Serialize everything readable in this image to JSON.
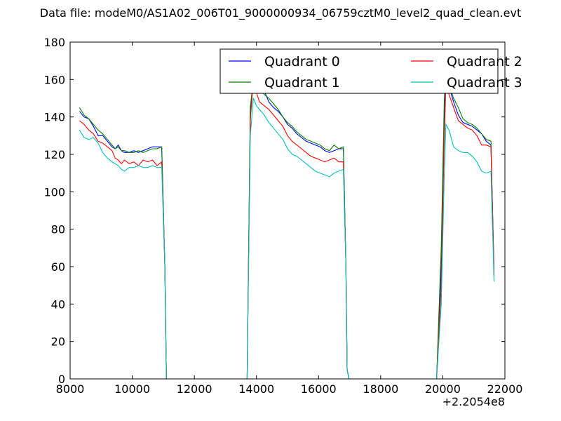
{
  "chart_data": {
    "type": "line",
    "title": "Data file: modeM0/AS1A02_006T01_9000000934_06759cztM0_level2_quad_clean.evt",
    "xlabel": "",
    "ylabel": "",
    "x_offset_label": "+2.2054e8",
    "xlim": [
      8000,
      22000
    ],
    "ylim": [
      0,
      180
    ],
    "xticks": [
      8000,
      10000,
      12000,
      14000,
      16000,
      18000,
      20000,
      22000
    ],
    "yticks": [
      0,
      20,
      40,
      60,
      80,
      100,
      120,
      140,
      160,
      180
    ],
    "grid": false,
    "legend_position": "upper-right",
    "series": [
      {
        "name": "Quadrant 0",
        "color": "#0000ff",
        "points": [
          [
            8300,
            143
          ],
          [
            8450,
            140
          ],
          [
            8600,
            139
          ],
          [
            8750,
            135
          ],
          [
            8900,
            130
          ],
          [
            9050,
            130
          ],
          [
            9200,
            127
          ],
          [
            9350,
            124
          ],
          [
            9450,
            123
          ],
          [
            9550,
            125
          ],
          [
            9650,
            122
          ],
          [
            9750,
            121
          ],
          [
            9900,
            121
          ],
          [
            10050,
            122
          ],
          [
            10200,
            121
          ],
          [
            10350,
            122
          ],
          [
            10500,
            123
          ],
          [
            10650,
            124
          ],
          [
            10800,
            124
          ],
          [
            10950,
            124
          ],
          [
            11050,
            60
          ],
          [
            11100,
            0
          ],
          [
            13700,
            0
          ],
          [
            13800,
            140
          ],
          [
            13900,
            163
          ],
          [
            14000,
            160
          ],
          [
            14100,
            157
          ],
          [
            14250,
            154
          ],
          [
            14400,
            148
          ],
          [
            14550,
            145
          ],
          [
            14700,
            143
          ],
          [
            14850,
            140
          ],
          [
            15000,
            136
          ],
          [
            15150,
            134
          ],
          [
            15300,
            131
          ],
          [
            15450,
            129
          ],
          [
            15600,
            127
          ],
          [
            15750,
            126
          ],
          [
            15900,
            125
          ],
          [
            16050,
            124
          ],
          [
            16200,
            122
          ],
          [
            16350,
            121
          ],
          [
            16500,
            122
          ],
          [
            16650,
            123
          ],
          [
            16800,
            123
          ],
          [
            16880,
            60
          ],
          [
            16920,
            5
          ],
          [
            16980,
            0
          ],
          [
            19800,
            0
          ],
          [
            19950,
            60
          ],
          [
            20050,
            140
          ],
          [
            20100,
            160
          ],
          [
            20200,
            156
          ],
          [
            20350,
            148
          ],
          [
            20500,
            141
          ],
          [
            20650,
            137
          ],
          [
            20800,
            136
          ],
          [
            20950,
            135
          ],
          [
            21100,
            133
          ],
          [
            21250,
            131
          ],
          [
            21400,
            127
          ],
          [
            21550,
            125
          ],
          [
            21650,
            58
          ]
        ]
      },
      {
        "name": "Quadrant 1",
        "color": "#008000",
        "points": [
          [
            8300,
            145
          ],
          [
            8450,
            141
          ],
          [
            8600,
            139
          ],
          [
            8750,
            136
          ],
          [
            8900,
            133
          ],
          [
            9050,
            131
          ],
          [
            9200,
            128
          ],
          [
            9350,
            125
          ],
          [
            9450,
            123
          ],
          [
            9550,
            124
          ],
          [
            9650,
            122
          ],
          [
            9750,
            122
          ],
          [
            9900,
            121
          ],
          [
            10050,
            121
          ],
          [
            10200,
            122
          ],
          [
            10350,
            121
          ],
          [
            10500,
            122
          ],
          [
            10650,
            123
          ],
          [
            10800,
            123
          ],
          [
            10950,
            124
          ],
          [
            11050,
            60
          ],
          [
            11100,
            0
          ],
          [
            13700,
            0
          ],
          [
            13800,
            145
          ],
          [
            13900,
            160
          ],
          [
            14000,
            166
          ],
          [
            14100,
            155
          ],
          [
            14250,
            152
          ],
          [
            14400,
            150
          ],
          [
            14550,
            147
          ],
          [
            14700,
            144
          ],
          [
            14850,
            140
          ],
          [
            15000,
            137
          ],
          [
            15150,
            135
          ],
          [
            15300,
            132
          ],
          [
            15450,
            130
          ],
          [
            15600,
            128
          ],
          [
            15750,
            127
          ],
          [
            15900,
            126
          ],
          [
            16050,
            125
          ],
          [
            16200,
            123
          ],
          [
            16350,
            122
          ],
          [
            16500,
            125
          ],
          [
            16650,
            123
          ],
          [
            16800,
            124
          ],
          [
            16880,
            60
          ],
          [
            16920,
            5
          ],
          [
            16980,
            0
          ],
          [
            19800,
            0
          ],
          [
            19950,
            70
          ],
          [
            20050,
            150
          ],
          [
            20100,
            162
          ],
          [
            20200,
            157
          ],
          [
            20350,
            150
          ],
          [
            20500,
            145
          ],
          [
            20650,
            139
          ],
          [
            20800,
            137
          ],
          [
            20950,
            136
          ],
          [
            21100,
            134
          ],
          [
            21250,
            131
          ],
          [
            21400,
            128
          ],
          [
            21550,
            127
          ],
          [
            21650,
            55
          ]
        ]
      },
      {
        "name": "Quadrant 2",
        "color": "#ff0000",
        "points": [
          [
            8300,
            138
          ],
          [
            8450,
            136
          ],
          [
            8600,
            133
          ],
          [
            8750,
            131
          ],
          [
            8900,
            127
          ],
          [
            9050,
            126
          ],
          [
            9200,
            124
          ],
          [
            9350,
            122
          ],
          [
            9450,
            118
          ],
          [
            9550,
            117
          ],
          [
            9650,
            115
          ],
          [
            9750,
            117
          ],
          [
            9900,
            115
          ],
          [
            10050,
            116
          ],
          [
            10200,
            114
          ],
          [
            10350,
            117
          ],
          [
            10500,
            116
          ],
          [
            10650,
            117
          ],
          [
            10800,
            114
          ],
          [
            10950,
            116
          ],
          [
            11050,
            60
          ],
          [
            11100,
            0
          ],
          [
            13700,
            0
          ],
          [
            13800,
            138
          ],
          [
            13900,
            160
          ],
          [
            14000,
            153
          ],
          [
            14100,
            148
          ],
          [
            14250,
            146
          ],
          [
            14400,
            144
          ],
          [
            14550,
            141
          ],
          [
            14700,
            138
          ],
          [
            14850,
            135
          ],
          [
            15000,
            130
          ],
          [
            15150,
            127
          ],
          [
            15300,
            125
          ],
          [
            15450,
            123
          ],
          [
            15600,
            121
          ],
          [
            15750,
            119
          ],
          [
            15900,
            118
          ],
          [
            16050,
            117
          ],
          [
            16200,
            116
          ],
          [
            16350,
            117
          ],
          [
            16500,
            118
          ],
          [
            16650,
            116
          ],
          [
            16800,
            116
          ],
          [
            16880,
            60
          ],
          [
            16920,
            5
          ],
          [
            16980,
            0
          ],
          [
            19800,
            0
          ],
          [
            19950,
            50
          ],
          [
            20050,
            130
          ],
          [
            20100,
            158
          ],
          [
            20200,
            152
          ],
          [
            20350,
            145
          ],
          [
            20500,
            138
          ],
          [
            20650,
            136
          ],
          [
            20800,
            134
          ],
          [
            20950,
            133
          ],
          [
            21100,
            130
          ],
          [
            21250,
            125
          ],
          [
            21400,
            125
          ],
          [
            21550,
            124
          ],
          [
            21650,
            55
          ]
        ]
      },
      {
        "name": "Quadrant 3",
        "color": "#00bfbf",
        "points": [
          [
            8300,
            133
          ],
          [
            8450,
            129
          ],
          [
            8600,
            128
          ],
          [
            8750,
            129
          ],
          [
            8900,
            126
          ],
          [
            9050,
            121
          ],
          [
            9200,
            118
          ],
          [
            9350,
            116
          ],
          [
            9450,
            115
          ],
          [
            9550,
            114
          ],
          [
            9650,
            112
          ],
          [
            9750,
            111
          ],
          [
            9900,
            113
          ],
          [
            10050,
            113
          ],
          [
            10200,
            114
          ],
          [
            10350,
            113
          ],
          [
            10500,
            113
          ],
          [
            10650,
            114
          ],
          [
            10800,
            113
          ],
          [
            10950,
            113
          ],
          [
            11050,
            60
          ],
          [
            11100,
            0
          ],
          [
            13700,
            0
          ],
          [
            13800,
            130
          ],
          [
            13900,
            150
          ],
          [
            14000,
            146
          ],
          [
            14100,
            144
          ],
          [
            14250,
            141
          ],
          [
            14400,
            137
          ],
          [
            14550,
            134
          ],
          [
            14700,
            131
          ],
          [
            14850,
            128
          ],
          [
            15000,
            123
          ],
          [
            15150,
            120
          ],
          [
            15300,
            119
          ],
          [
            15450,
            117
          ],
          [
            15600,
            115
          ],
          [
            15750,
            113
          ],
          [
            15900,
            111
          ],
          [
            16050,
            110
          ],
          [
            16200,
            109
          ],
          [
            16350,
            108
          ],
          [
            16500,
            110
          ],
          [
            16650,
            111
          ],
          [
            16800,
            112
          ],
          [
            16880,
            60
          ],
          [
            16920,
            5
          ],
          [
            16980,
            0
          ],
          [
            19800,
            0
          ],
          [
            19950,
            40
          ],
          [
            20050,
            110
          ],
          [
            20100,
            136
          ],
          [
            20200,
            133
          ],
          [
            20350,
            124
          ],
          [
            20500,
            122
          ],
          [
            20650,
            121
          ],
          [
            20800,
            121
          ],
          [
            20950,
            119
          ],
          [
            21100,
            116
          ],
          [
            21250,
            111
          ],
          [
            21400,
            110
          ],
          [
            21550,
            111
          ],
          [
            21650,
            52
          ]
        ]
      }
    ]
  }
}
